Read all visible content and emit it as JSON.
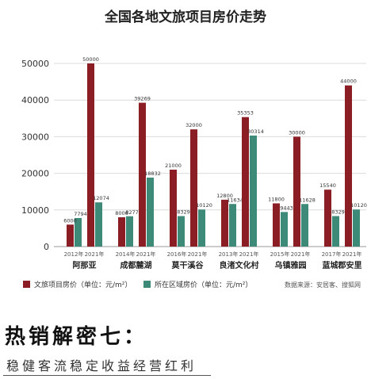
{
  "chart_data": {
    "type": "bar",
    "title": "全国各地文旅项目房价走势",
    "ylim": [
      0,
      50000
    ],
    "yticks": [
      0,
      10000,
      20000,
      30000,
      40000,
      50000
    ],
    "grid": true,
    "legend_position": "bottom-left",
    "colors": {
      "project": "#8B1E24",
      "area": "#3E8A78"
    },
    "legend": [
      {
        "label": "文旅项目房价（单位：元/m²）",
        "color": "#8B1E24"
      },
      {
        "label": "所在区域房价（单位：元/m²）",
        "color": "#3E8A78"
      }
    ],
    "source": "数据来源：安居客、搜狐网",
    "groups": [
      {
        "name": "阿那亚",
        "years": [
          "2012年",
          "2021年"
        ],
        "project": [
          6000,
          50000
        ],
        "area": [
          7794,
          12074
        ],
        "project_labels": [
          "6000",
          "50000"
        ],
        "area_labels": [
          "7794",
          "12074"
        ]
      },
      {
        "name": "成都麓湖",
        "years": [
          "2014年",
          "2021年"
        ],
        "project": [
          8006,
          39269
        ],
        "area": [
          8277,
          18832
        ],
        "project_labels": [
          "8006",
          "39269"
        ],
        "area_labels": [
          "8277",
          "18832"
        ]
      },
      {
        "name": "莫干溪谷",
        "years": [
          "2016年",
          "2021年"
        ],
        "project": [
          21000,
          32000
        ],
        "area": [
          8329,
          10120
        ],
        "project_labels": [
          "21000",
          "32000"
        ],
        "area_labels": [
          "8329",
          "10120"
        ]
      },
      {
        "name": "良渚文化村",
        "years": [
          "2013年",
          "2021年"
        ],
        "project": [
          12800,
          35353
        ],
        "area": [
          11634,
          30314
        ],
        "project_labels": [
          "12800",
          "35353"
        ],
        "area_labels": [
          "11634",
          "30314"
        ]
      },
      {
        "name": "乌镇雅园",
        "years": [
          "2015年",
          "2021年"
        ],
        "project": [
          11800,
          30000
        ],
        "area": [
          9443,
          11628
        ],
        "project_labels": [
          "11800",
          "30000"
        ],
        "area_labels": [
          "9443",
          "11628"
        ]
      },
      {
        "name": "蓝城郡安里",
        "years": [
          "2017年",
          "2021年"
        ],
        "project": [
          15540,
          44000
        ],
        "area": [
          8329,
          10120
        ],
        "project_labels": [
          "15540",
          "44000"
        ],
        "area_labels": [
          "8329",
          "10120"
        ]
      }
    ]
  },
  "footer": {
    "heading": "热销解密七：",
    "subheading": "稳健客流稳定收益经营红利"
  }
}
